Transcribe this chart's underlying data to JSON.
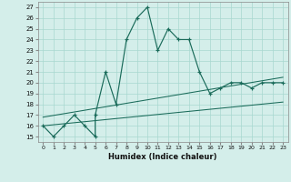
{
  "xlabel": "Humidex (Indice chaleur)",
  "bg_color": "#d4eeea",
  "grid_color": "#a8d8d0",
  "line_color": "#1a6b5a",
  "xlim": [
    -0.5,
    23.5
  ],
  "ylim": [
    14.5,
    27.5
  ],
  "xticks": [
    0,
    1,
    2,
    3,
    4,
    5,
    6,
    7,
    8,
    9,
    10,
    11,
    12,
    13,
    14,
    15,
    16,
    17,
    18,
    19,
    20,
    21,
    22,
    23
  ],
  "yticks": [
    15,
    16,
    17,
    18,
    19,
    20,
    21,
    22,
    23,
    24,
    25,
    26,
    27
  ],
  "main_line_x": [
    0,
    1,
    2,
    3,
    4,
    5,
    5,
    6,
    7,
    8,
    9,
    10,
    11,
    12,
    13,
    14,
    15,
    16,
    17,
    18,
    19,
    20,
    21,
    22,
    23
  ],
  "main_line_y": [
    16,
    15,
    16,
    17,
    16,
    15,
    17,
    21,
    18,
    24,
    26,
    27,
    23,
    25,
    24,
    24,
    21,
    19,
    19.5,
    20,
    20,
    19.5,
    20,
    20,
    20
  ],
  "lower_line_x": [
    0,
    23
  ],
  "lower_line_y": [
    16.0,
    18.2
  ],
  "upper_line_x": [
    0,
    23
  ],
  "upper_line_y": [
    16.8,
    20.5
  ]
}
